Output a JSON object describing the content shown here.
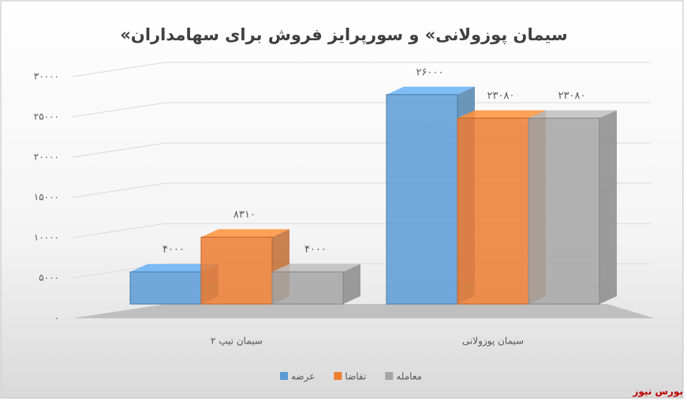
{
  "chart_data": {
    "type": "bar",
    "title": "«سیمان پوزولانی» و سورپرایز فروش برای سهامداران",
    "categories": [
      "سیمان تیپ ۲",
      "سیمان پوزولانی"
    ],
    "series": [
      {
        "name": "عرضه",
        "color": "#5b9bd5",
        "values": [
          4000,
          26000
        ],
        "value_labels": [
          "۴۰۰۰",
          "۲۶۰۰۰"
        ]
      },
      {
        "name": "تقاضا",
        "color": "#ed7d31",
        "values": [
          8310,
          23080
        ],
        "value_labels": [
          "۸۳۱۰",
          "۲۳۰۸۰"
        ]
      },
      {
        "name": "معامله",
        "color": "#a5a5a5",
        "values": [
          4000,
          23080
        ],
        "value_labels": [
          "۴۰۰۰",
          "۲۳۰۸۰"
        ]
      }
    ],
    "ylim": [
      0,
      30000
    ],
    "yticks": [
      {
        "value": 0,
        "label": "۰"
      },
      {
        "value": 5000,
        "label": "۵۰۰۰"
      },
      {
        "value": 10000,
        "label": "۱۰۰۰۰"
      },
      {
        "value": 15000,
        "label": "۱۵۰۰۰"
      },
      {
        "value": 20000,
        "label": "۲۰۰۰۰"
      },
      {
        "value": 25000,
        "label": "۲۵۰۰۰"
      },
      {
        "value": 30000,
        "label": "۳۰۰۰۰"
      }
    ],
    "grid": true,
    "legend": "bottom",
    "source": "بورس نیوز"
  }
}
